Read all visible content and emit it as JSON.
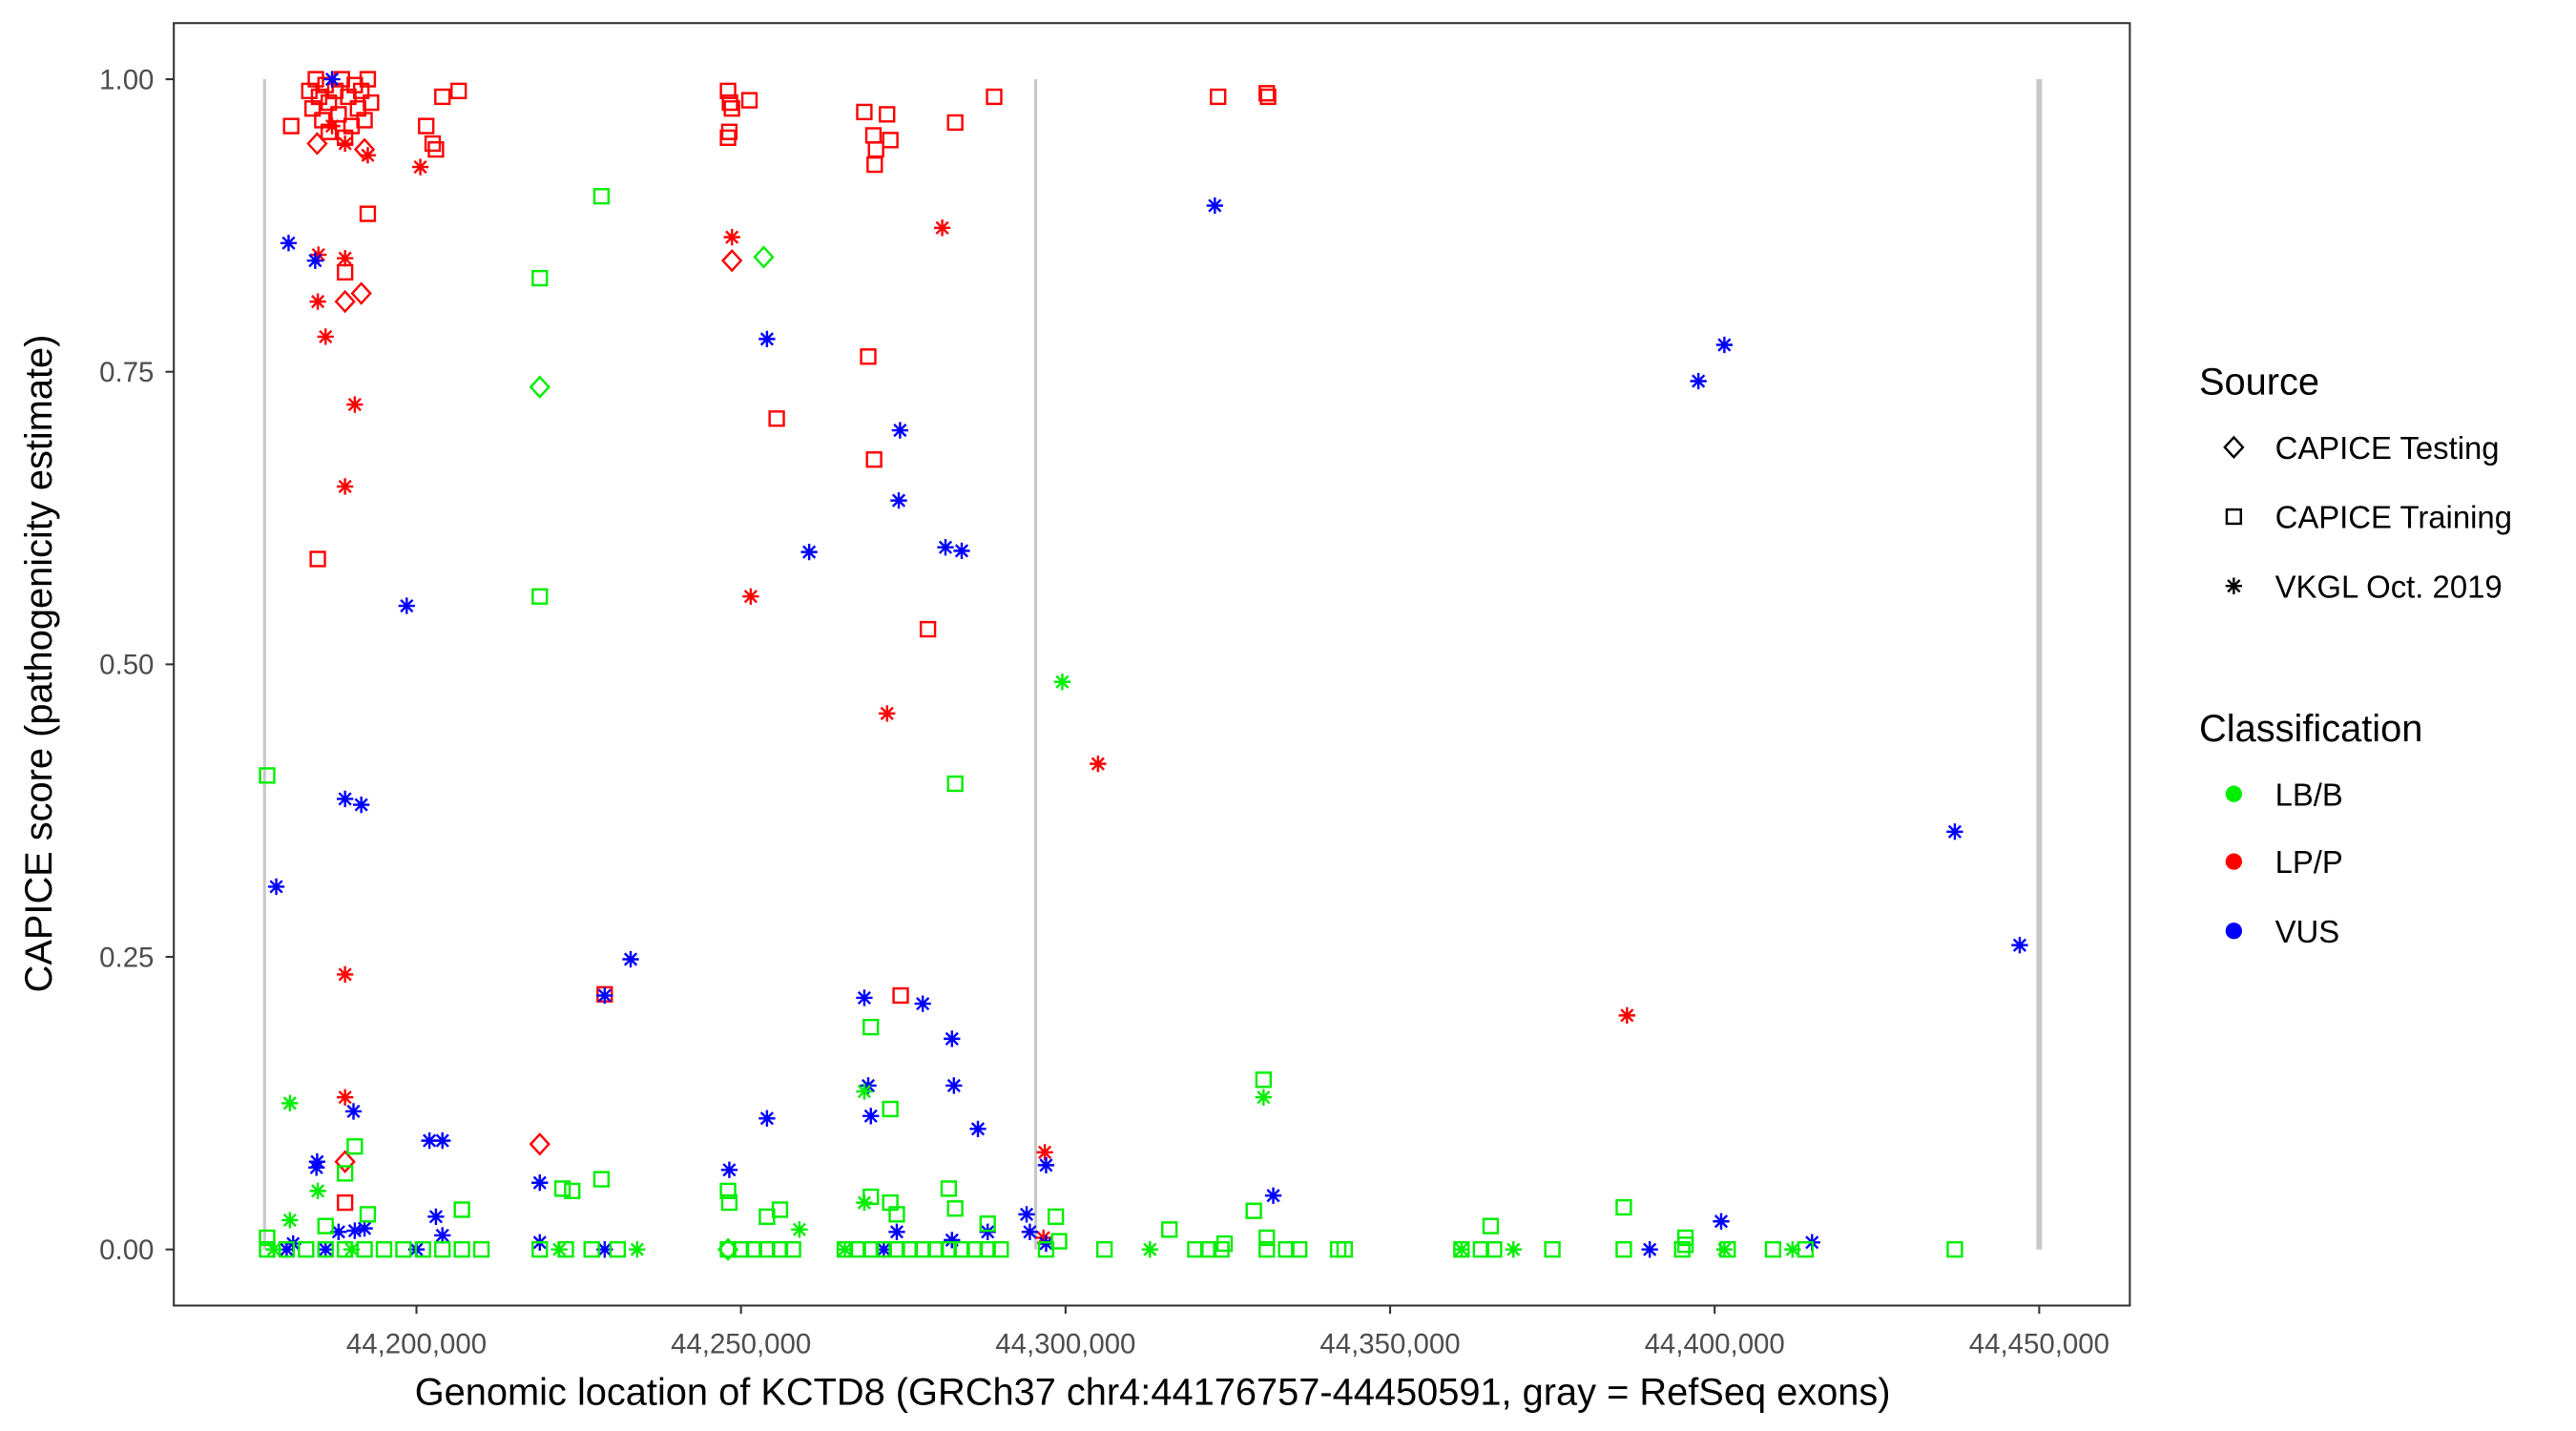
{
  "chart_data": {
    "type": "scatter",
    "xlabel": "Genomic location of KCTD8 (GRCh37 chr4:44176757-44450591, gray = RefSeq exons)",
    "ylabel": "CAPICE score (pathogenicity estimate)",
    "xlim": [
      44150000,
      44463000
    ],
    "ylim": [
      -0.09,
      1.05
    ],
    "x_ticks": [
      44200000,
      44250000,
      44300000,
      44350000,
      44400000,
      44450000
    ],
    "x_tick_labels": [
      "44,200,000",
      "44,250,000",
      "44,300,000",
      "44,350,000",
      "44,400,000",
      "44,450,000"
    ],
    "y_ticks": [
      0,
      0.25,
      0.5,
      0.75,
      1.0
    ],
    "y_tick_labels": [
      "0.00",
      "0.25",
      "0.50",
      "0.75",
      "1.00"
    ],
    "grid": false,
    "exon_lines": [
      44176600,
      44295400,
      44450000
    ],
    "exon_color": "#c8c8c8",
    "legend_placement": "right",
    "legend": {
      "source_title": "Source",
      "sources": [
        {
          "label": "CAPICE Testing",
          "shape": "diamond"
        },
        {
          "label": "CAPICE Training",
          "shape": "square"
        },
        {
          "label": "VKGL Oct. 2019",
          "shape": "asterisk"
        }
      ],
      "class_title": "Classification",
      "classes": [
        {
          "label": "LB/B",
          "color": "#00ee00"
        },
        {
          "label": "LP/P",
          "color": "#ff0000"
        },
        {
          "label": "VUS",
          "color": "#0000ff"
        }
      ]
    },
    "series": [
      {
        "source": "CAPICE Training",
        "classification": "LP/P",
        "points": [
          [
            44180700,
            0.96
          ],
          [
            44183500,
            0.99
          ],
          [
            44184000,
            0.975
          ],
          [
            44184500,
            1.0
          ],
          [
            44185000,
            0.985
          ],
          [
            44185500,
            0.965
          ],
          [
            44186000,
            0.995
          ],
          [
            44186500,
            0.98
          ],
          [
            44187500,
            0.99
          ],
          [
            44188000,
            0.97
          ],
          [
            44188500,
            1.0
          ],
          [
            44189500,
            0.985
          ],
          [
            44190000,
            0.96
          ],
          [
            44190500,
            0.995
          ],
          [
            44191000,
            0.975
          ],
          [
            44191500,
            0.99
          ],
          [
            44192000,
            0.965
          ],
          [
            44192500,
            1.0
          ],
          [
            44193000,
            0.98
          ],
          [
            44186500,
            0.955
          ],
          [
            44189000,
            0.95
          ],
          [
            44201500,
            0.96
          ],
          [
            44202500,
            0.945
          ],
          [
            44203000,
            0.94
          ],
          [
            44204000,
            0.985
          ],
          [
            44206500,
            0.99
          ],
          [
            44192500,
            0.885
          ],
          [
            44189000,
            0.835
          ],
          [
            44184800,
            0.59
          ],
          [
            44189000,
            0.04
          ],
          [
            44248000,
            0.99
          ],
          [
            44248300,
            0.98
          ],
          [
            44248600,
            0.975
          ],
          [
            44248200,
            0.955
          ],
          [
            44248000,
            0.95
          ],
          [
            44251300,
            0.982
          ],
          [
            44269000,
            0.972
          ],
          [
            44272500,
            0.97
          ],
          [
            44270400,
            0.952
          ],
          [
            44270800,
            0.94
          ],
          [
            44273000,
            0.948
          ],
          [
            44270600,
            0.927
          ],
          [
            44283000,
            0.963
          ],
          [
            44289000,
            0.985
          ],
          [
            44323500,
            0.985
          ],
          [
            44331000,
            0.988
          ],
          [
            44331200,
            0.985
          ],
          [
            44269600,
            0.763
          ],
          [
            44255500,
            0.71
          ],
          [
            44270500,
            0.675
          ],
          [
            44278800,
            0.53
          ],
          [
            44274600,
            0.217
          ],
          [
            44229000,
            0.218
          ]
        ]
      },
      {
        "source": "VKGL Oct. 2019",
        "classification": "LP/P",
        "points": [
          [
            44192500,
            0.935
          ],
          [
            44200600,
            0.925
          ],
          [
            44184900,
            0.85
          ],
          [
            44189000,
            0.847
          ],
          [
            44184800,
            0.81
          ],
          [
            44186000,
            0.78
          ],
          [
            44190500,
            0.722
          ],
          [
            44189000,
            0.652
          ],
          [
            44189000,
            0.235
          ],
          [
            44189000,
            0.13
          ],
          [
            44248600,
            0.865
          ],
          [
            44251500,
            0.558
          ],
          [
            44281000,
            0.873
          ],
          [
            44272500,
            0.458
          ],
          [
            44305000,
            0.415
          ],
          [
            44386500,
            0.2
          ],
          [
            44296800,
            0.083
          ],
          [
            44296600,
            0.01
          ],
          [
            44189000,
            0.945
          ],
          [
            44187000,
            0.96
          ]
        ]
      },
      {
        "source": "CAPICE Testing",
        "classification": "LP/P",
        "points": [
          [
            44184700,
            0.945
          ],
          [
            44189000,
            0.81
          ],
          [
            44191500,
            0.817
          ],
          [
            44248600,
            0.845
          ],
          [
            44219000,
            0.09
          ],
          [
            44189000,
            0.075
          ],
          [
            44192000,
            0.94
          ]
        ]
      },
      {
        "source": "VKGL Oct. 2019",
        "classification": "VUS",
        "points": [
          [
            44187000,
            1.0
          ],
          [
            44180300,
            0.86
          ],
          [
            44184400,
            0.845
          ],
          [
            44198500,
            0.55
          ],
          [
            44189000,
            0.385
          ],
          [
            44191500,
            0.38
          ],
          [
            44178400,
            0.31
          ],
          [
            44229000,
            0.217
          ],
          [
            44233000,
            0.248
          ],
          [
            44254000,
            0.778
          ],
          [
            44260500,
            0.596
          ],
          [
            44274500,
            0.7
          ],
          [
            44274300,
            0.64
          ],
          [
            44281500,
            0.6
          ],
          [
            44284000,
            0.597
          ],
          [
            44323000,
            0.892
          ],
          [
            44397500,
            0.742
          ],
          [
            44401500,
            0.773
          ],
          [
            44437000,
            0.357
          ],
          [
            44447000,
            0.26
          ],
          [
            44269000,
            0.215
          ],
          [
            44278000,
            0.21
          ],
          [
            44282500,
            0.18
          ],
          [
            44269600,
            0.14
          ],
          [
            44282800,
            0.14
          ],
          [
            44270000,
            0.114
          ],
          [
            44254000,
            0.112
          ],
          [
            44286500,
            0.103
          ],
          [
            44190300,
            0.118
          ],
          [
            44202000,
            0.093
          ],
          [
            44204000,
            0.093
          ],
          [
            44184700,
            0.075
          ],
          [
            44184600,
            0.07
          ],
          [
            44219000,
            0.057
          ],
          [
            44248200,
            0.068
          ],
          [
            44297000,
            0.072
          ],
          [
            44294000,
            0.03
          ],
          [
            44332000,
            0.046
          ],
          [
            44401000,
            0.024
          ],
          [
            44415000,
            0.006
          ],
          [
            44390000,
            0.0
          ],
          [
            44229000,
            0.0
          ],
          [
            44219000,
            0.006
          ],
          [
            44203000,
            0.028
          ],
          [
            44204000,
            0.012
          ],
          [
            44200000,
            0.0
          ],
          [
            44186000,
            0.0
          ],
          [
            44180000,
            0.0
          ],
          [
            44181000,
            0.005
          ],
          [
            44188000,
            0.015
          ],
          [
            44190500,
            0.016
          ],
          [
            44192000,
            0.018
          ],
          [
            44272000,
            0.0
          ],
          [
            44274000,
            0.015
          ],
          [
            44282500,
            0.008
          ],
          [
            44288000,
            0.015
          ],
          [
            44294500,
            0.015
          ],
          [
            44297000,
            0.005
          ]
        ]
      },
      {
        "source": "CAPICE Training",
        "classification": "LB/B",
        "points": [
          [
            44177000,
            0.405
          ],
          [
            44283000,
            0.398
          ],
          [
            44228500,
            0.9
          ],
          [
            44219000,
            0.83
          ],
          [
            44219000,
            0.558
          ],
          [
            44270000,
            0.19
          ],
          [
            44330500,
            0.145
          ],
          [
            44273000,
            0.12
          ],
          [
            44190500,
            0.088
          ],
          [
            44189000,
            0.065
          ],
          [
            44228500,
            0.06
          ],
          [
            44222500,
            0.052
          ],
          [
            44224000,
            0.05
          ],
          [
            44282000,
            0.052
          ],
          [
            44248000,
            0.05
          ],
          [
            44248200,
            0.04
          ],
          [
            44270000,
            0.045
          ],
          [
            44273000,
            0.04
          ],
          [
            44329000,
            0.033
          ],
          [
            44386000,
            0.036
          ],
          [
            44207000,
            0.034
          ],
          [
            44256000,
            0.034
          ],
          [
            44298500,
            0.028
          ],
          [
            44192500,
            0.03
          ],
          [
            44365500,
            0.02
          ],
          [
            44316000,
            0.017
          ],
          [
            44395500,
            0.01
          ],
          [
            44331000,
            0.01
          ],
          [
            44288000,
            0.022
          ],
          [
            44186000,
            0.02
          ],
          [
            44177000,
            0.01
          ],
          [
            44254000,
            0.028
          ],
          [
            44274000,
            0.03
          ],
          [
            44283000,
            0.035
          ],
          [
            44177000,
            0.0
          ],
          [
            44180000,
            0.0
          ],
          [
            44183000,
            0.0
          ],
          [
            44186000,
            0.0
          ],
          [
            44189000,
            0.0
          ],
          [
            44192000,
            0.0
          ],
          [
            44195000,
            0.0
          ],
          [
            44198000,
            0.0
          ],
          [
            44201000,
            0.0
          ],
          [
            44204000,
            0.0
          ],
          [
            44207000,
            0.0
          ],
          [
            44210000,
            0.0
          ],
          [
            44219000,
            0.0
          ],
          [
            44223000,
            0.0
          ],
          [
            44227000,
            0.0
          ],
          [
            44231000,
            0.0
          ],
          [
            44248000,
            0.0
          ],
          [
            44250000,
            0.0
          ],
          [
            44252000,
            0.0
          ],
          [
            44254000,
            0.0
          ],
          [
            44256000,
            0.0
          ],
          [
            44258000,
            0.0
          ],
          [
            44266000,
            0.0
          ],
          [
            44268000,
            0.0
          ],
          [
            44270000,
            0.0
          ],
          [
            44272000,
            0.0
          ],
          [
            44274000,
            0.0
          ],
          [
            44276000,
            0.0
          ],
          [
            44278000,
            0.0
          ],
          [
            44280000,
            0.0
          ],
          [
            44282000,
            0.0
          ],
          [
            44284000,
            0.0
          ],
          [
            44286000,
            0.0
          ],
          [
            44288000,
            0.0
          ],
          [
            44290000,
            0.0
          ],
          [
            44297000,
            0.0
          ],
          [
            44306000,
            0.0
          ],
          [
            44320000,
            0.0
          ],
          [
            44322000,
            0.0
          ],
          [
            44324000,
            0.0
          ],
          [
            44331000,
            0.0
          ],
          [
            44334000,
            0.0
          ],
          [
            44336000,
            0.0
          ],
          [
            44342000,
            0.0
          ],
          [
            44343000,
            0.0
          ],
          [
            44361000,
            0.0
          ],
          [
            44364000,
            0.0
          ],
          [
            44366000,
            0.0
          ],
          [
            44375000,
            0.0
          ],
          [
            44386000,
            0.0
          ],
          [
            44395000,
            0.0
          ],
          [
            44402000,
            0.0
          ],
          [
            44409000,
            0.0
          ],
          [
            44414000,
            0.0
          ],
          [
            44437000,
            0.0
          ],
          [
            44324500,
            0.005
          ],
          [
            44299000,
            0.007
          ],
          [
            44395500,
            0.004
          ]
        ]
      },
      {
        "source": "VKGL Oct. 2019",
        "classification": "LB/B",
        "points": [
          [
            44299500,
            0.485
          ],
          [
            44180500,
            0.125
          ],
          [
            44269000,
            0.135
          ],
          [
            44330500,
            0.13
          ],
          [
            44184800,
            0.05
          ],
          [
            44180500,
            0.025
          ],
          [
            44269000,
            0.04
          ],
          [
            44259000,
            0.017
          ],
          [
            44313000,
            0.0
          ],
          [
            44234000,
            0.0
          ],
          [
            44222000,
            0.0
          ],
          [
            44361000,
            0.0
          ],
          [
            44369000,
            0.0
          ],
          [
            44401500,
            0.0
          ],
          [
            44412000,
            0.0
          ],
          [
            44266000,
            0.0
          ],
          [
            44190000,
            0.0
          ],
          [
            44178000,
            0.0
          ]
        ]
      },
      {
        "source": "CAPICE Testing",
        "classification": "LB/B",
        "points": [
          [
            44253500,
            0.848
          ],
          [
            44219000,
            0.737
          ],
          [
            44248000,
            0.0
          ]
        ]
      }
    ]
  }
}
